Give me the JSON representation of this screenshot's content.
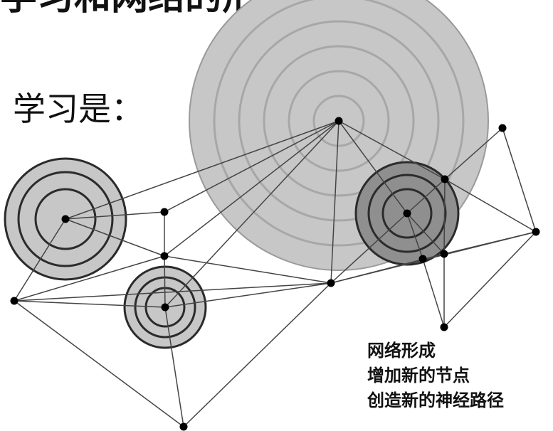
{
  "page": {
    "title": "学习和网络的形成",
    "label": "学习是：",
    "caption": [
      "网络形成",
      "增加新的节点",
      "创造新的神经路径"
    ]
  },
  "colors": {
    "fill_light": "#c7c7c7",
    "fill_dark": "#8f8f8f",
    "ring": "#2b2b2b",
    "line": "#444444",
    "node": "#000000"
  }
}
